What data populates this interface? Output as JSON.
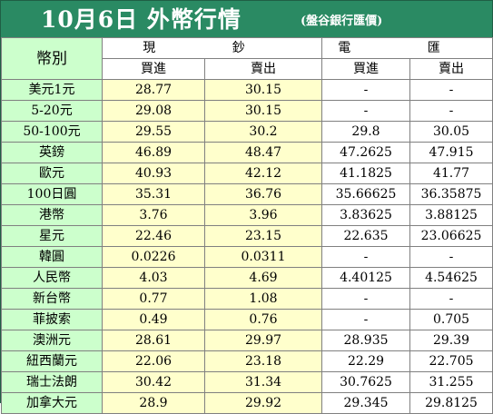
{
  "title": {
    "main": "10月6日 外幣行情",
    "sub": "(盤谷銀行匯價)"
  },
  "headers": {
    "currency": "幣別",
    "cash": "現 鈔",
    "spot": "電 匯",
    "buy": "買進",
    "sell": "賣出"
  },
  "colors": {
    "title_bar": "#2a8a63",
    "name_column": "#ccffcc",
    "cash_columns": "#ffffcc",
    "spot_columns": "#ffffff"
  },
  "rows": [
    {
      "name": "美元1元",
      "cash_buy": "28.77",
      "cash_sell": "30.15",
      "spot_buy": "-",
      "spot_sell": "-"
    },
    {
      "name": "5-20元",
      "cash_buy": "29.08",
      "cash_sell": "30.15",
      "spot_buy": "-",
      "spot_sell": "-"
    },
    {
      "name": "50-100元",
      "cash_buy": "29.55",
      "cash_sell": "30.2",
      "spot_buy": "29.8",
      "spot_sell": "30.05"
    },
    {
      "name": "英鎊",
      "cash_buy": "46.89",
      "cash_sell": "48.47",
      "spot_buy": "47.2625",
      "spot_sell": "47.915"
    },
    {
      "name": "歐元",
      "cash_buy": "40.93",
      "cash_sell": "42.12",
      "spot_buy": "41.1825",
      "spot_sell": "41.77"
    },
    {
      "name": "100日圓",
      "cash_buy": "35.31",
      "cash_sell": "36.76",
      "spot_buy": "35.66625",
      "spot_sell": "36.35875"
    },
    {
      "name": "港幣",
      "cash_buy": "3.76",
      "cash_sell": "3.96",
      "spot_buy": "3.83625",
      "spot_sell": "3.88125"
    },
    {
      "name": "星元",
      "cash_buy": "22.46",
      "cash_sell": "23.15",
      "spot_buy": "22.635",
      "spot_sell": "23.06625"
    },
    {
      "name": "韓圓",
      "cash_buy": "0.0226",
      "cash_sell": "0.0311",
      "spot_buy": "-",
      "spot_sell": "-"
    },
    {
      "name": "人民幣",
      "cash_buy": "4.03",
      "cash_sell": "4.69",
      "spot_buy": "4.40125",
      "spot_sell": "4.54625"
    },
    {
      "name": "新台幣",
      "cash_buy": "0.77",
      "cash_sell": "1.08",
      "spot_buy": "-",
      "spot_sell": "-"
    },
    {
      "name": "菲披索",
      "cash_buy": "0.49",
      "cash_sell": "0.76",
      "spot_buy": "-",
      "spot_sell": "0.705"
    },
    {
      "name": "澳洲元",
      "cash_buy": "28.61",
      "cash_sell": "29.97",
      "spot_buy": "28.935",
      "spot_sell": "29.39"
    },
    {
      "name": "紐西蘭元",
      "cash_buy": "22.06",
      "cash_sell": "23.18",
      "spot_buy": "22.29",
      "spot_sell": "22.705"
    },
    {
      "name": "瑞士法朗",
      "cash_buy": "30.42",
      "cash_sell": "31.34",
      "spot_buy": "30.7625",
      "spot_sell": "31.255"
    },
    {
      "name": "加拿大元",
      "cash_buy": "28.9",
      "cash_sell": "29.92",
      "spot_buy": "29.345",
      "spot_sell": "29.8125"
    }
  ]
}
